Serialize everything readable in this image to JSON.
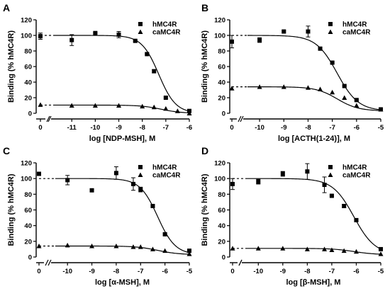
{
  "chart_data": [
    {
      "panel": "A",
      "type": "scatter",
      "xlabel": "log [NDP-MSH], M",
      "ylabel": "Binding (% hMC4R)",
      "ylim": [
        0,
        120
      ],
      "yticks": [
        0,
        20,
        40,
        60,
        80,
        100,
        120
      ],
      "xticks": [
        "0",
        "-11",
        "-10",
        "-9",
        "-8",
        "-7",
        "-6"
      ],
      "xrange": [
        -11.7,
        -6
      ],
      "series": [
        {
          "name": "hMC4R",
          "marker": "square",
          "zero": {
            "y": 99,
            "err": 4
          },
          "points": [
            {
              "x": -11,
              "y": 94,
              "err": 7
            },
            {
              "x": -10,
              "y": 103,
              "err": 1
            },
            {
              "x": -9,
              "y": 101,
              "err": 4
            },
            {
              "x": -8.3,
              "y": 93,
              "err": 1
            },
            {
              "x": -7.8,
              "y": 76,
              "err": 1
            },
            {
              "x": -7.5,
              "y": 54,
              "err": 2
            },
            {
              "x": -7,
              "y": 20,
              "err": 1
            },
            {
              "x": -6,
              "y": 3,
              "err": 1
            }
          ],
          "fit": {
            "top": 100,
            "bottom": 0,
            "logIC50": -7.3,
            "hill": 1.2
          }
        },
        {
          "name": "caMC4R",
          "marker": "triangle",
          "zero": {
            "y": 11,
            "err": 0
          },
          "points": [
            {
              "x": -11,
              "y": 10
            },
            {
              "x": -10,
              "y": 10
            },
            {
              "x": -9,
              "y": 10
            },
            {
              "x": -8,
              "y": 9
            },
            {
              "x": -7.5,
              "y": 8
            },
            {
              "x": -7,
              "y": 6
            },
            {
              "x": -6.5,
              "y": 3
            },
            {
              "x": -6,
              "y": 0
            }
          ],
          "fit": {
            "top": 10.5,
            "bottom": 0,
            "logIC50": -7.2,
            "hill": 1
          }
        }
      ]
    },
    {
      "panel": "B",
      "type": "scatter",
      "xlabel": "log [ACTH(1-24)], M",
      "ylabel": "Binding (% hMC4R)",
      "ylim": [
        0,
        120
      ],
      "yticks": [
        0,
        20,
        40,
        60,
        80,
        100,
        120
      ],
      "xticks": [
        "0",
        "-10",
        "-9",
        "-8",
        "-7",
        "-6",
        "-5"
      ],
      "xrange": [
        -10.5,
        -5
      ],
      "series": [
        {
          "name": "hMC4R",
          "marker": "square",
          "zero": {
            "y": 92,
            "err": 8
          },
          "points": [
            {
              "x": -10,
              "y": 94,
              "err": 3
            },
            {
              "x": -9,
              "y": 105,
              "err": 1
            },
            {
              "x": -8,
              "y": 105,
              "err": 7
            },
            {
              "x": -7.5,
              "y": 83,
              "err": 1
            },
            {
              "x": -7,
              "y": 65,
              "err": 1
            },
            {
              "x": -6.5,
              "y": 35,
              "err": 1
            },
            {
              "x": -6,
              "y": 17,
              "err": 1
            },
            {
              "x": -5,
              "y": 5,
              "err": 1
            }
          ],
          "fit": {
            "top": 100,
            "bottom": 3,
            "logIC50": -6.8,
            "hill": 1
          }
        },
        {
          "name": "caMC4R",
          "marker": "triangle",
          "zero": {
            "y": 32,
            "err": 0
          },
          "points": [
            {
              "x": -10,
              "y": 34
            },
            {
              "x": -9,
              "y": 34
            },
            {
              "x": -8,
              "y": 33
            },
            {
              "x": -7.5,
              "y": 31
            },
            {
              "x": -7,
              "y": 27
            },
            {
              "x": -6.5,
              "y": 20
            },
            {
              "x": -6,
              "y": 10
            },
            {
              "x": -5,
              "y": 5
            }
          ],
          "fit": {
            "top": 34,
            "bottom": 3,
            "logIC50": -6.8,
            "hill": 1
          }
        }
      ]
    },
    {
      "panel": "C",
      "type": "scatter",
      "xlabel": "log [α-MSH], M",
      "ylabel": "Binding (% hMC4R)",
      "ylim": [
        0,
        120
      ],
      "yticks": [
        0,
        20,
        40,
        60,
        80,
        100,
        120
      ],
      "xticks": [
        "0",
        "-10",
        "-9",
        "-8",
        "-7",
        "-6",
        "-5"
      ],
      "xrange": [
        -10.5,
        -5
      ],
      "series": [
        {
          "name": "hMC4R",
          "marker": "square",
          "zero": {
            "y": 106,
            "err": 2
          },
          "points": [
            {
              "x": -10,
              "y": 98,
              "err": 6
            },
            {
              "x": -9,
              "y": 85,
              "err": 1
            },
            {
              "x": -8,
              "y": 107,
              "err": 8
            },
            {
              "x": -7.3,
              "y": 93,
              "err": 8
            },
            {
              "x": -7,
              "y": 86,
              "err": 3
            },
            {
              "x": -6.5,
              "y": 65,
              "err": 1
            },
            {
              "x": -6,
              "y": 29,
              "err": 1
            },
            {
              "x": -5,
              "y": 8,
              "err": 1
            }
          ],
          "fit": {
            "top": 100,
            "bottom": 3,
            "logIC50": -6.3,
            "hill": 1.2
          }
        },
        {
          "name": "caMC4R",
          "marker": "triangle",
          "zero": {
            "y": 14,
            "err": 0
          },
          "points": [
            {
              "x": -10,
              "y": 15
            },
            {
              "x": -9,
              "y": 14
            },
            {
              "x": -8,
              "y": 14
            },
            {
              "x": -7.3,
              "y": 13
            },
            {
              "x": -7,
              "y": 13
            },
            {
              "x": -6.5,
              "y": 10
            },
            {
              "x": -6,
              "y": 8
            },
            {
              "x": -5,
              "y": 4
            }
          ],
          "fit": {
            "top": 14,
            "bottom": 3,
            "logIC50": -6.3,
            "hill": 1
          }
        }
      ]
    },
    {
      "panel": "D",
      "type": "scatter",
      "xlabel": "log [β-MSH], M",
      "ylabel": "Binding (% hMC4R)",
      "ylim": [
        0,
        120
      ],
      "yticks": [
        0,
        20,
        40,
        60,
        80,
        100,
        120
      ],
      "xticks": [
        "0",
        "-10",
        "-9",
        "-8",
        "-7",
        "-6",
        "-5"
      ],
      "xrange": [
        -10.5,
        -5
      ],
      "series": [
        {
          "name": "hMC4R",
          "marker": "square",
          "zero": {
            "y": 93,
            "err": 7
          },
          "points": [
            {
              "x": -10,
              "y": 96,
              "err": 3
            },
            {
              "x": -9,
              "y": 106,
              "err": 3
            },
            {
              "x": -8,
              "y": 109,
              "err": 10
            },
            {
              "x": -7.3,
              "y": 92,
              "err": 10
            },
            {
              "x": -7,
              "y": 78,
              "err": 1
            },
            {
              "x": -6.5,
              "y": 65,
              "err": 2
            },
            {
              "x": -6,
              "y": 47,
              "err": 1
            },
            {
              "x": -5,
              "y": 10,
              "err": 1
            }
          ],
          "fit": {
            "top": 100,
            "bottom": 3,
            "logIC50": -6.1,
            "hill": 1
          }
        },
        {
          "name": "caMC4R",
          "marker": "triangle",
          "zero": {
            "y": 11,
            "err": 0
          },
          "points": [
            {
              "x": -10,
              "y": 11
            },
            {
              "x": -9,
              "y": 11
            },
            {
              "x": -8,
              "y": 10
            },
            {
              "x": -7.3,
              "y": 10
            },
            {
              "x": -7,
              "y": 9
            },
            {
              "x": -6.5,
              "y": 8
            },
            {
              "x": -6,
              "y": 7
            },
            {
              "x": -5,
              "y": 4
            }
          ],
          "fit": {
            "top": 11,
            "bottom": 3,
            "logIC50": -6.1,
            "hill": 1
          }
        }
      ]
    }
  ]
}
